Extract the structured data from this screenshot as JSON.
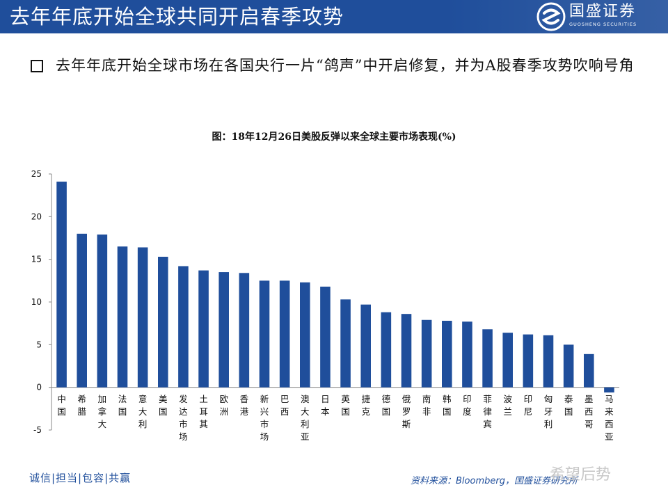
{
  "header": {
    "title": "去年年底开始全球共同开启春季攻势",
    "logo_name": "国盛证券",
    "logo_en": "GUOSHENG SECURITIES"
  },
  "bullet": {
    "text": "去年年底开始全球市场在各国央行一片“鸽声”中开启修复，并为A股春季攻势吹响号角"
  },
  "chart_data": {
    "type": "bar",
    "title": "图：18年12月26日美股反弹以来全球主要市场表现(%)",
    "categories": [
      "中国",
      "希腊",
      "加拿大",
      "法国",
      "意大利",
      "美国",
      "发达市场",
      "土耳其",
      "欧洲",
      "香港",
      "新兴市场",
      "巴西",
      "澳大利亚",
      "日本",
      "英国",
      "捷克",
      "德国",
      "俄罗斯",
      "南非",
      "韩国",
      "印度",
      "菲律宾",
      "波兰",
      "印尼",
      "匈牙利",
      "泰国",
      "墨西哥",
      "马来西亚"
    ],
    "values": [
      24.1,
      18.0,
      17.9,
      16.5,
      16.4,
      15.3,
      14.2,
      13.7,
      13.5,
      13.4,
      12.5,
      12.5,
      12.3,
      11.8,
      10.3,
      9.7,
      8.8,
      8.6,
      7.9,
      7.8,
      7.7,
      6.8,
      6.4,
      6.2,
      6.1,
      5.0,
      3.9,
      -0.6
    ],
    "ylim": [
      -5,
      25
    ],
    "yticks": [
      25,
      20,
      15,
      10,
      5,
      0,
      -5
    ],
    "bar_color": "#1f4e9b",
    "grid": false
  },
  "footer": {
    "motto": "诚信|担当|包容|共赢",
    "source": "资料来源：Bloomberg，国盛证券研究所",
    "watermark": "希望后势"
  },
  "colors": {
    "brand_blue": "#1f4e9b"
  }
}
